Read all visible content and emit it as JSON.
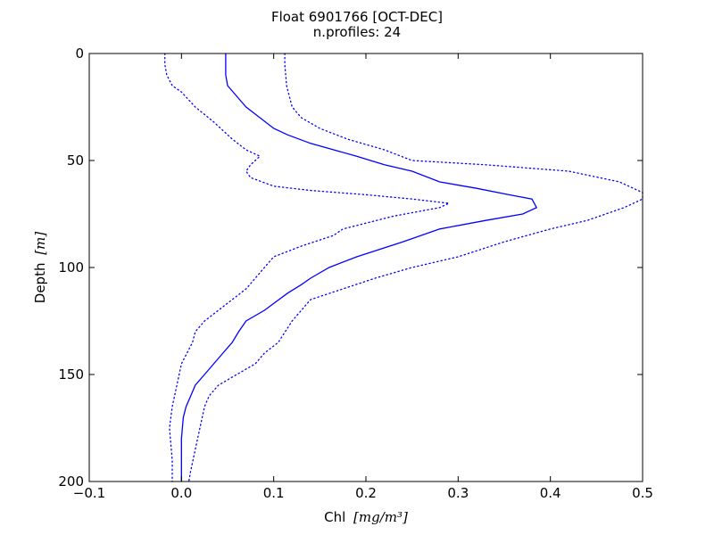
{
  "chart_data": {
    "type": "line",
    "title": "Float 6901766 [OCT-DEC]",
    "subtitle": "n.profiles: 24",
    "xlabel_text": "Chl",
    "xlabel_math": "[mg/m³]",
    "ylabel_text": "Depth",
    "ylabel_math": "[m]",
    "xlim": [
      -0.1,
      0.5
    ],
    "ylim": [
      200,
      0
    ],
    "y_inverted": true,
    "xticks": [
      -0.1,
      0.0,
      0.1,
      0.2,
      0.3,
      0.4,
      0.5
    ],
    "xtick_labels": [
      "−0.1",
      "0.0",
      "0.1",
      "0.2",
      "0.3",
      "0.4",
      "0.5"
    ],
    "yticks": [
      0,
      50,
      100,
      150,
      200
    ],
    "ytick_labels": [
      "0",
      "50",
      "100",
      "150",
      "200"
    ],
    "grid": false,
    "line_color": "#0000ff",
    "series": [
      {
        "style": "solid",
        "x": [
          0.048,
          0.048,
          0.048,
          0.05,
          0.06,
          0.07,
          0.085,
          0.1,
          0.115,
          0.14,
          0.165,
          0.19,
          0.22,
          0.25,
          0.28,
          0.32,
          0.355,
          0.38,
          0.385,
          0.37,
          0.33,
          0.28,
          0.24,
          0.19,
          0.16,
          0.14,
          0.13,
          0.115,
          0.09,
          0.07,
          0.062,
          0.055,
          0.045,
          0.035,
          0.025,
          0.015,
          0.01,
          0.005,
          0.002,
          0.0,
          0.0,
          0.0
        ],
        "depth": [
          0,
          5,
          10,
          15,
          20,
          25,
          30,
          35,
          38,
          42,
          45,
          48,
          52,
          55,
          60,
          63,
          66,
          68,
          72,
          75,
          78,
          82,
          88,
          95,
          100,
          105,
          108,
          112,
          120,
          125,
          130,
          135,
          140,
          145,
          150,
          155,
          160,
          165,
          170,
          180,
          190,
          200
        ]
      },
      {
        "style": "dotted",
        "x": [
          -0.018,
          -0.018,
          -0.016,
          -0.01,
          0.0,
          0.015,
          0.035,
          0.055,
          0.07,
          0.085,
          0.075,
          0.07,
          0.075,
          0.1,
          0.14,
          0.2,
          0.25,
          0.29,
          0.28,
          0.23,
          0.175,
          0.165,
          0.13,
          0.1,
          0.09,
          0.08,
          0.07,
          0.055,
          0.04,
          0.025,
          0.015,
          0.012,
          0.0,
          -0.005,
          -0.01,
          -0.013,
          -0.012,
          -0.01,
          -0.01
        ],
        "depth": [
          0,
          5,
          10,
          15,
          18,
          25,
          32,
          40,
          45,
          48,
          52,
          55,
          58,
          62,
          64,
          66,
          68,
          70,
          72,
          76,
          82,
          85,
          90,
          95,
          100,
          105,
          110,
          115,
          120,
          125,
          130,
          135,
          145,
          155,
          165,
          175,
          180,
          190,
          200
        ]
      },
      {
        "style": "dotted",
        "x": [
          0.112,
          0.112,
          0.114,
          0.12,
          0.13,
          0.15,
          0.18,
          0.22,
          0.25,
          0.33,
          0.42,
          0.475,
          0.5,
          0.5,
          0.48,
          0.44,
          0.4,
          0.35,
          0.3,
          0.25,
          0.21,
          0.175,
          0.14,
          0.12,
          0.105,
          0.09,
          0.08,
          0.06,
          0.04,
          0.03,
          0.025,
          0.02,
          0.015,
          0.01,
          0.008
        ],
        "depth": [
          0,
          5,
          15,
          25,
          30,
          35,
          40,
          45,
          50,
          52,
          55,
          60,
          65,
          68,
          72,
          78,
          82,
          88,
          95,
          100,
          105,
          110,
          115,
          125,
          135,
          140,
          145,
          150,
          155,
          160,
          165,
          175,
          185,
          195,
          200
        ]
      }
    ]
  }
}
